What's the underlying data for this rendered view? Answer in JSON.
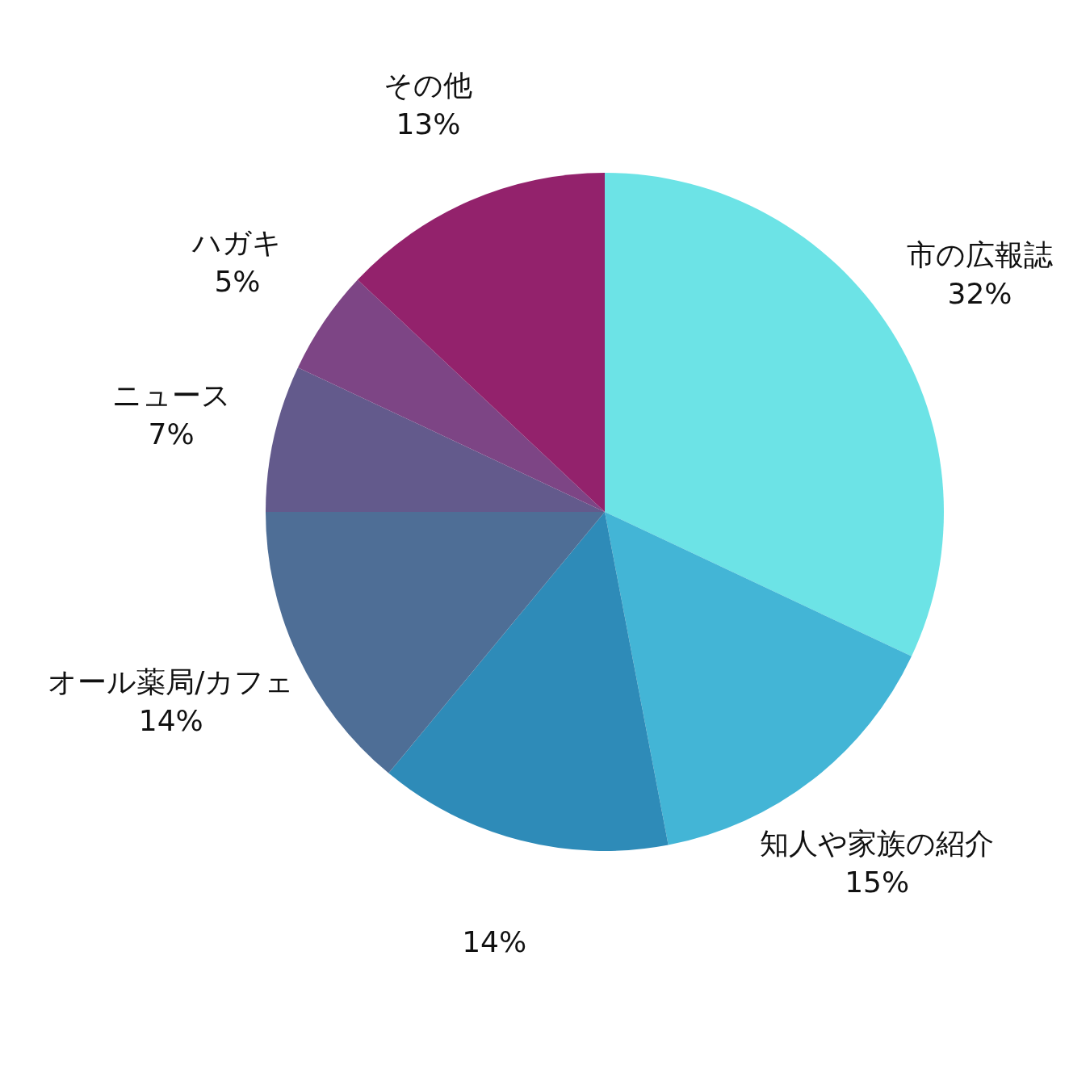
{
  "chart_data": {
    "type": "pie",
    "categories": [
      "市の広報誌",
      "知人や家族の紹介",
      null,
      "オール薬局/カフェ",
      "ニュース",
      "ハガキ",
      "その他"
    ],
    "values": [
      32,
      15,
      14,
      14,
      7,
      5,
      13
    ],
    "colors": [
      "#6ce3e6",
      "#43b5d6",
      "#2e8bb8",
      "#4e6e96",
      "#635a8c",
      "#7d4585",
      "#93226c"
    ],
    "value_labels": [
      "32%",
      "15%",
      "14%",
      "14%",
      "7%",
      "5%",
      "13%"
    ]
  }
}
